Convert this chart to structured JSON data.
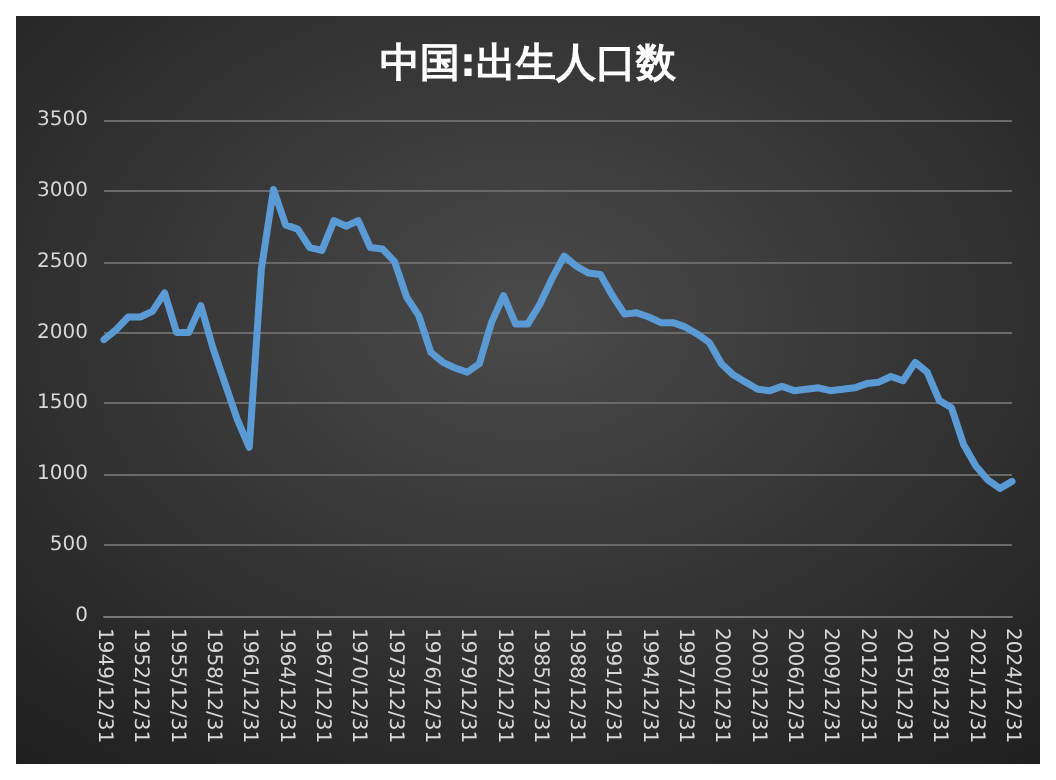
{
  "chart_data": {
    "type": "line",
    "title": "中国:出生人口数",
    "categories": [
      "1949/12/31",
      null,
      null,
      "1952/12/31",
      null,
      null,
      "1955/12/31",
      null,
      null,
      "1958/12/31",
      null,
      null,
      "1961/12/31",
      null,
      null,
      "1964/12/31",
      null,
      null,
      "1967/12/31",
      null,
      null,
      "1970/12/31",
      null,
      null,
      "1973/12/31",
      null,
      null,
      "1976/12/31",
      null,
      null,
      "1979/12/31",
      null,
      null,
      "1982/12/31",
      null,
      null,
      "1985/12/31",
      null,
      null,
      "1988/12/31",
      null,
      null,
      "1991/12/31",
      null,
      null,
      "1994/12/31",
      null,
      null,
      "1997/12/31",
      null,
      null,
      "2000/12/31",
      null,
      null,
      "2003/12/31",
      null,
      null,
      "2006/12/31",
      null,
      null,
      "2009/12/31",
      null,
      null,
      "2012/12/31",
      null,
      null,
      "2015/12/31",
      null,
      null,
      "2018/12/31",
      null,
      null,
      "2021/12/31",
      null,
      null,
      "2024/12/31"
    ],
    "series": [
      {
        "color": "#5b9bd5",
        "values": [
          1950,
          2020,
          2110,
          2110,
          2150,
          2280,
          2000,
          2000,
          2190,
          1890,
          1640,
          1390,
          1190,
          2450,
          3010,
          2760,
          2730,
          2600,
          2580,
          2790,
          2750,
          2790,
          2600,
          2590,
          2500,
          2250,
          2120,
          1860,
          1790,
          1750,
          1720,
          1780,
          2070,
          2260,
          2060,
          2060,
          2200,
          2380,
          2540,
          2470,
          2420,
          2410,
          2260,
          2130,
          2140,
          2110,
          2070,
          2070,
          2040,
          1990,
          1930,
          1780,
          1700,
          1650,
          1600,
          1590,
          1620,
          1590,
          1600,
          1610,
          1590,
          1600,
          1610,
          1640,
          1650,
          1690,
          1660,
          1790,
          1720,
          1520,
          1470,
          1210,
          1060,
          960,
          900,
          950
        ]
      }
    ],
    "ylim": [
      0,
      3500
    ],
    "yticks": [
      0,
      500,
      1000,
      1500,
      2000,
      2500,
      3000,
      3500
    ],
    "grid": "y",
    "marker": "none",
    "line_style": "solid"
  }
}
